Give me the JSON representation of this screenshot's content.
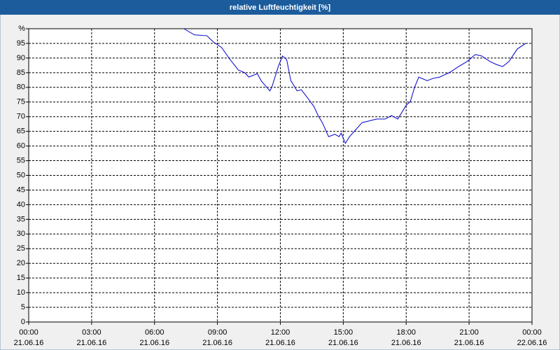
{
  "chart_data": {
    "type": "line",
    "title": "relative Luftfeuchtigkeit [%]",
    "x": [
      7.4,
      7.9,
      8.5,
      8.8,
      9.2,
      9.6,
      10.0,
      10.3,
      10.5,
      10.9,
      11.1,
      11.5,
      11.6,
      11.9,
      12.1,
      12.3,
      12.5,
      12.8,
      13.0,
      13.3,
      13.6,
      13.8,
      14.0,
      14.3,
      14.6,
      14.8,
      14.9,
      15.1,
      15.3,
      15.6,
      15.9,
      16.2,
      16.6,
      17.0,
      17.3,
      17.6,
      18.0,
      18.2,
      18.4,
      18.6,
      19.0,
      19.3,
      19.6,
      20.1,
      20.5,
      20.9,
      21.3,
      21.6,
      22.0,
      22.3,
      22.6,
      22.9,
      23.3,
      23.7
    ],
    "series": [
      {
        "color": "#0000cc",
        "values": [
          100,
          97.9,
          97.6,
          95.5,
          93.6,
          89.5,
          85.9,
          85.0,
          83.5,
          84.7,
          82.1,
          78.8,
          80.2,
          87.1,
          90.7,
          89.5,
          82.3,
          78.8,
          79.2,
          76.4,
          73.5,
          70.4,
          68.0,
          63.2,
          64.0,
          63.2,
          64.4,
          60.9,
          63.2,
          65.6,
          68.0,
          68.5,
          69.2,
          69.2,
          70.4,
          69.2,
          73.9,
          75.2,
          80.0,
          83.5,
          82.3,
          83.1,
          83.5,
          85.2,
          87.1,
          88.8,
          91.2,
          90.7,
          88.8,
          87.8,
          87.1,
          88.8,
          93.1,
          95.0
        ]
      }
    ],
    "xlim": [
      0,
      24
    ],
    "xticks": [
      {
        "value": 0,
        "label": "00:00 21.06.16"
      },
      {
        "value": 3,
        "label": "03:00 21.06.16"
      },
      {
        "value": 6,
        "label": "06:00 21.06.16"
      },
      {
        "value": 9,
        "label": "09:00 21.06.16"
      },
      {
        "value": 12,
        "label": "12:00 21.06.16"
      },
      {
        "value": 15,
        "label": "15:00 21.06.16"
      },
      {
        "value": 18,
        "label": "18:00 21.06.16"
      },
      {
        "value": 21,
        "label": "21:00 21.06.16"
      },
      {
        "value": 24,
        "label": "00:00 22.06.16"
      }
    ],
    "ylim": [
      0,
      100
    ],
    "yticks": [
      0,
      5,
      10,
      15,
      20,
      25,
      30,
      35,
      40,
      45,
      50,
      55,
      60,
      65,
      70,
      75,
      80,
      85,
      90,
      95,
      {
        "value": 100,
        "label": "%"
      }
    ],
    "grid": true
  }
}
